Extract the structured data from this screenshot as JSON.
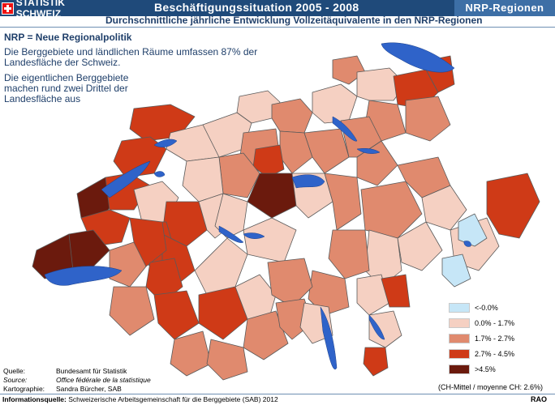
{
  "header": {
    "brand": "STATISTIK SCHWEIZ",
    "title": "Beschäftigungssituation 2005 - 2008",
    "region_tag": "NRP-Regionen"
  },
  "subtitle": "Durchschnittliche jährliche Entwicklung Vollzeitäquivalente in den NRP-Regionen",
  "info": {
    "heading": "NRP = Neue Regionalpolitik",
    "p1": "Die Berggebiete und ländlichen Räume umfassen 87% der Landesfläche der Schweiz.",
    "p2": "Die eigentlichen Berggebiete machen rund zwei Drittel der Landesfläche aus"
  },
  "legend": {
    "items": [
      {
        "label": "<-0.0%",
        "color": "#c6e6f7"
      },
      {
        "label": "0.0% - 1.7%",
        "color": "#f5d0c2"
      },
      {
        "label": "1.7% - 2.7%",
        "color": "#e08a6e"
      },
      {
        "label": "2.7% - 4.5%",
        "color": "#cf3a17"
      },
      {
        "label": ">4.5%",
        "color": "#6b1a0d"
      }
    ],
    "note": "(CH-Mittel / moyenne CH: 2.6%)"
  },
  "colors": {
    "lake": "#2f63c9",
    "border": "#5a5a5a",
    "header_bg": "#1f4a7a"
  },
  "credits": {
    "quelle_label": "Quelle:",
    "quelle_value": "Bundesamt für Statistik",
    "source_label": "Source:",
    "source_value": "Office fédérale de la statistique",
    "karto_label": "Kartographie:",
    "karto_value": "Sandra Bürcher, SAB",
    "info_label": "Informationsquelle:",
    "info_value": "Schweizerische Arbeitsgemeinschaft für die Berggebiete (SAB) 2012",
    "rao": "RAO"
  }
}
